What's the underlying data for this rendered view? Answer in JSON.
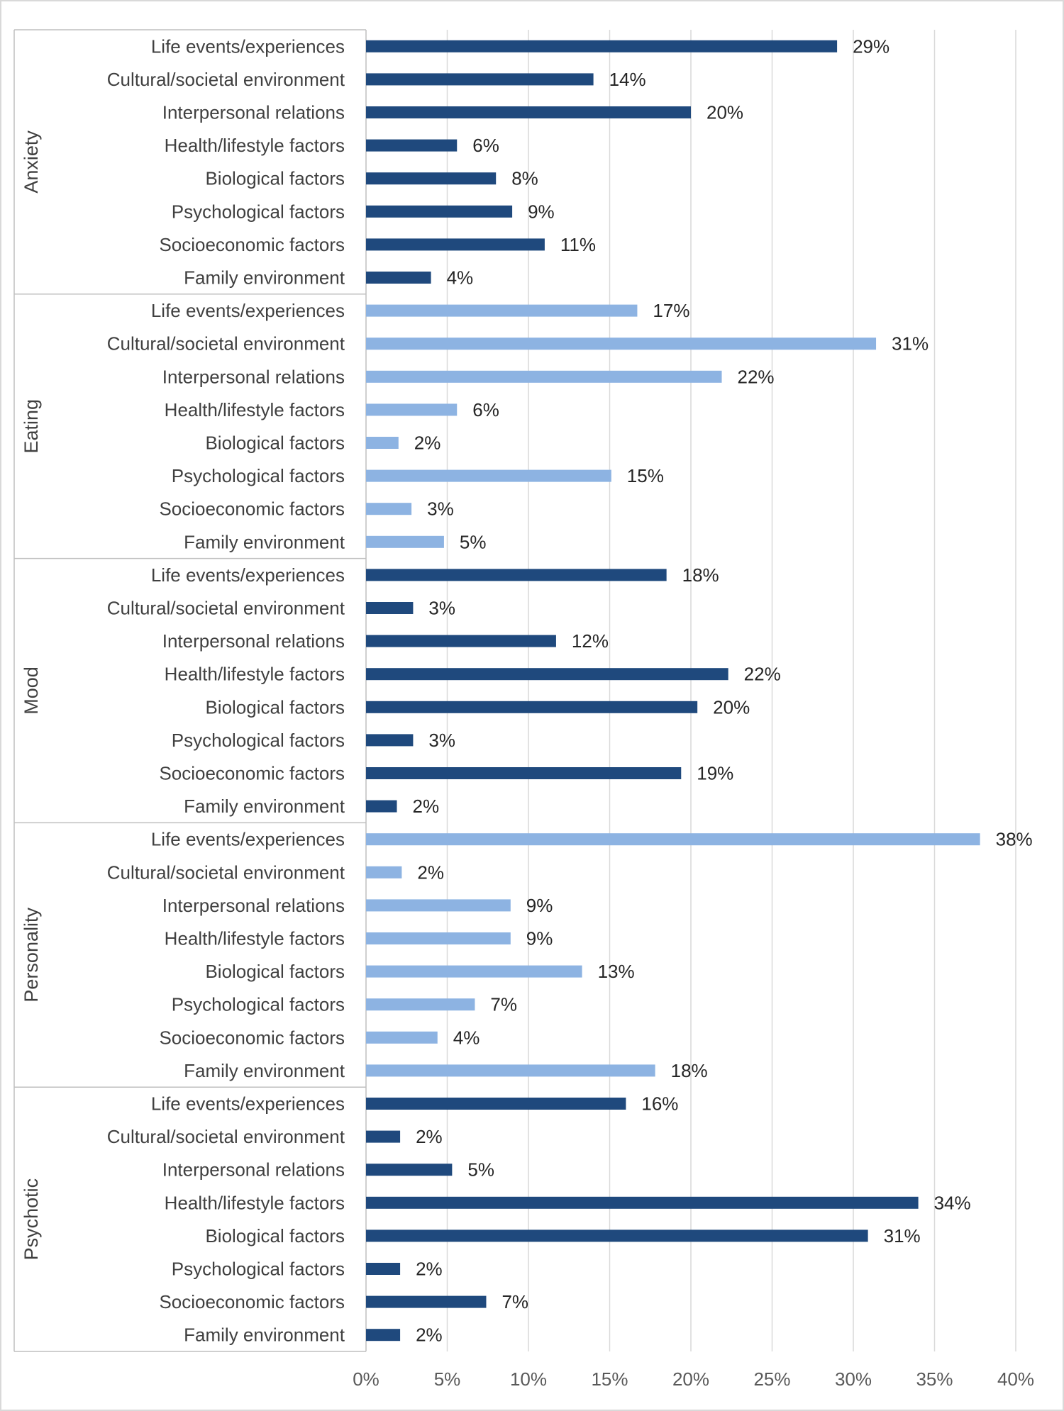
{
  "chart_data": {
    "type": "bar",
    "orientation": "horizontal",
    "xlim": [
      0,
      40
    ],
    "x_ticks": [
      "0%",
      "5%",
      "10%",
      "15%",
      "20%",
      "25%",
      "30%",
      "35%",
      "40%"
    ],
    "grid": "vertical",
    "legend": "none",
    "value_suffix": "%",
    "categories": [
      "Life events/experiences",
      "Cultural/societal environment",
      "Interpersonal relations",
      "Health/lifestyle factors",
      "Biological factors",
      "Psychological factors",
      "Socioeconomic factors",
      "Family environment"
    ],
    "groups": [
      {
        "name": "Anxiety",
        "color": "#1f497d",
        "values": [
          29,
          14,
          20,
          5.6,
          8,
          9,
          11,
          4
        ]
      },
      {
        "name": "Eating",
        "color": "#8db3e2",
        "values": [
          16.7,
          31.4,
          21.9,
          5.6,
          2,
          15.1,
          2.8,
          4.8
        ]
      },
      {
        "name": "Mood",
        "color": "#1f497d",
        "values": [
          18.5,
          2.9,
          11.7,
          22.3,
          20.4,
          2.9,
          19.4,
          1.9
        ]
      },
      {
        "name": "Personality",
        "color": "#8db3e2",
        "values": [
          37.8,
          2.2,
          8.9,
          8.9,
          13.3,
          6.7,
          4.4,
          17.8
        ]
      },
      {
        "name": "Psychotic",
        "color": "#1f497d",
        "values": [
          16,
          2.1,
          5.3,
          34,
          30.9,
          2.1,
          7.4,
          2.1
        ]
      }
    ],
    "data_labels": [
      [
        "29%",
        "14%",
        "20%",
        "6%",
        "8%",
        "9%",
        "11%",
        "4%"
      ],
      [
        "17%",
        "31%",
        "22%",
        "6%",
        "2%",
        "15%",
        "3%",
        "5%"
      ],
      [
        "18%",
        "3%",
        "12%",
        "22%",
        "20%",
        "3%",
        "19%",
        "2%"
      ],
      [
        "38%",
        "2%",
        "9%",
        "9%",
        "13%",
        "7%",
        "4%",
        "18%"
      ],
      [
        "16%",
        "2%",
        "5%",
        "34%",
        "31%",
        "2%",
        "7%",
        "2%"
      ]
    ]
  }
}
